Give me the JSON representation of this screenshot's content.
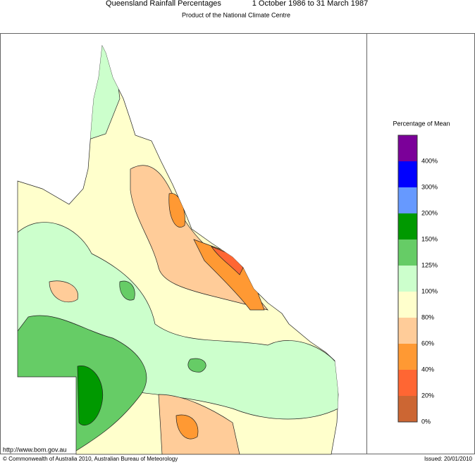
{
  "header": {
    "title": "Queensland Rainfall Percentages",
    "period": "1 October 1986 to 31 March 1987",
    "subtitle": "Product of the National Climate Centre"
  },
  "legend": {
    "title": "Percentage of Mean",
    "items": [
      {
        "label": "400%",
        "color": "#7b0099"
      },
      {
        "label": "300%",
        "color": "#0000ff"
      },
      {
        "label": "200%",
        "color": "#6699ff"
      },
      {
        "label": "150%",
        "color": "#009900"
      },
      {
        "label": "125%",
        "color": "#66cc66"
      },
      {
        "label": "100%",
        "color": "#ccffcc"
      },
      {
        "label": "80%",
        "color": "#ffffcc"
      },
      {
        "label": "60%",
        "color": "#ffcc99"
      },
      {
        "label": "40%",
        "color": "#ff9933"
      },
      {
        "label": "20%",
        "color": "#ff6633"
      },
      {
        "label": "0%",
        "color": "#cc6633"
      }
    ]
  },
  "footer": {
    "url": "http://www.bom.gov.au",
    "copyright": "© Commonwealth of Australia 2010, Australian Bureau of Meteorology",
    "issued": "Issued: 20/01/2010"
  }
}
